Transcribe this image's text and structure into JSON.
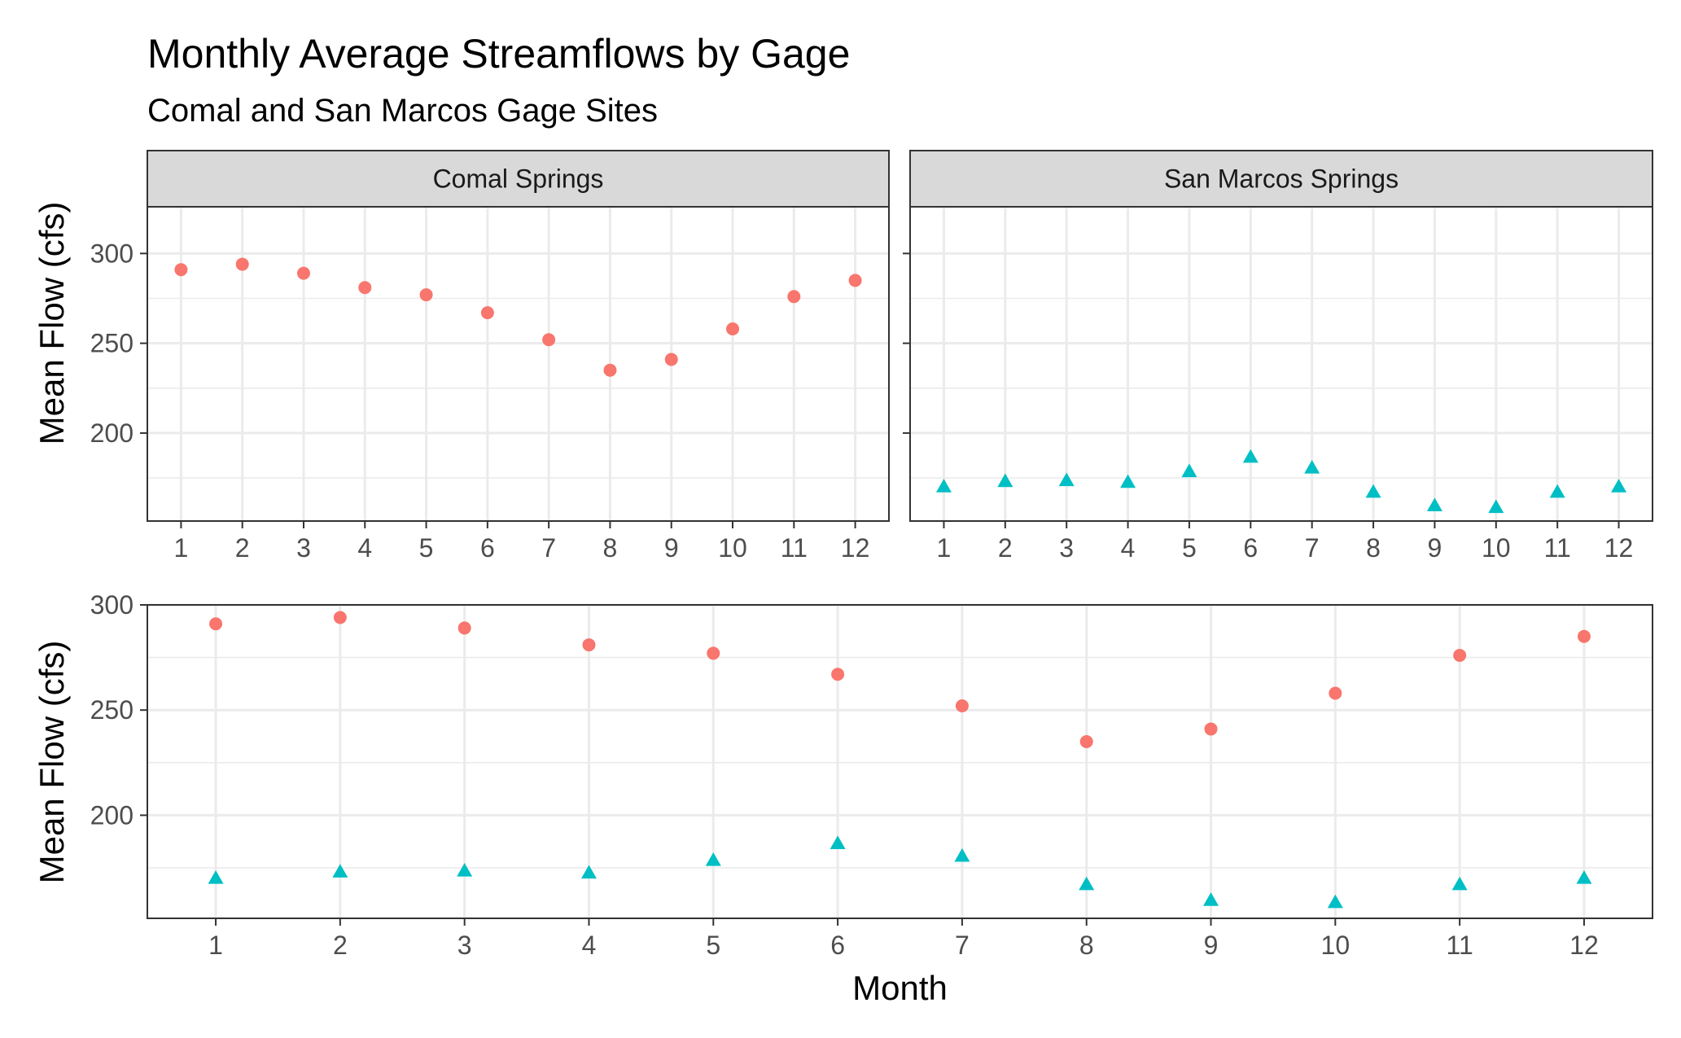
{
  "title": "Monthly Average Streamflows by Gage",
  "subtitle": "Comal and San Marcos Gage Sites",
  "colors": {
    "comal": "#F8766D",
    "san_marcos": "#00BFC4",
    "grid": "#EBEBEB",
    "strip_fill": "#D9D9D9",
    "panel_border": "#333333"
  },
  "chart_data": [
    {
      "type": "scatter",
      "panel": "Comal Springs",
      "ylabel": "Mean Flow (cfs)",
      "xlabel": "",
      "x": [
        1,
        2,
        3,
        4,
        5,
        6,
        7,
        8,
        9,
        10,
        11,
        12
      ],
      "xticks": [
        "1",
        "2",
        "3",
        "4",
        "5",
        "6",
        "7",
        "8",
        "9",
        "10",
        "11",
        "12"
      ],
      "yticks": [
        "200",
        "250",
        "300"
      ],
      "ylim": [
        151,
        326
      ],
      "grid": true,
      "series": [
        {
          "values": [
            291,
            294,
            289,
            281,
            277,
            267,
            252,
            235,
            241,
            258,
            276,
            285
          ],
          "shape": "circle",
          "color": "#F8766D"
        }
      ]
    },
    {
      "type": "scatter",
      "panel": "San Marcos Springs",
      "ylabel": "",
      "xlabel": "",
      "x": [
        1,
        2,
        3,
        4,
        5,
        6,
        7,
        8,
        9,
        10,
        11,
        12
      ],
      "xticks": [
        "1",
        "2",
        "3",
        "4",
        "5",
        "6",
        "7",
        "8",
        "9",
        "10",
        "11",
        "12"
      ],
      "yticks": [],
      "ylim": [
        151,
        326
      ],
      "grid": true,
      "series": [
        {
          "values": [
            170,
            173,
            173.5,
            172.5,
            178.5,
            186.5,
            180.5,
            167,
            159.5,
            158.5,
            167,
            170
          ],
          "shape": "triangle",
          "color": "#00BFC4"
        }
      ]
    },
    {
      "type": "scatter",
      "panel": "",
      "ylabel": "Mean Flow (cfs)",
      "xlabel": "Month",
      "x": [
        1,
        2,
        3,
        4,
        5,
        6,
        7,
        8,
        9,
        10,
        11,
        12
      ],
      "xticks": [
        "1",
        "2",
        "3",
        "4",
        "5",
        "6",
        "7",
        "8",
        "9",
        "10",
        "11",
        "12"
      ],
      "yticks": [
        "200",
        "250",
        "300"
      ],
      "ylim": [
        151,
        300
      ],
      "grid": true,
      "series": [
        {
          "values": [
            291,
            294,
            289,
            281,
            277,
            267,
            252,
            235,
            241,
            258,
            276,
            285
          ],
          "shape": "circle",
          "color": "#F8766D"
        },
        {
          "values": [
            170,
            173,
            173.5,
            172.5,
            178.5,
            186.5,
            180.5,
            167,
            159.5,
            158.5,
            167,
            170
          ],
          "shape": "triangle",
          "color": "#00BFC4"
        }
      ]
    }
  ]
}
